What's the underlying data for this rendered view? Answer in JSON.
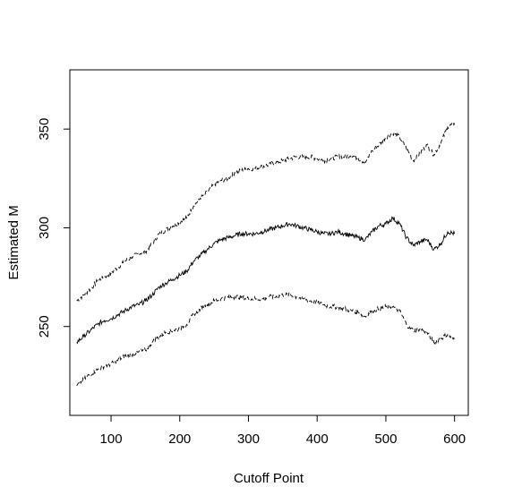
{
  "chart_data": {
    "type": "line",
    "xlabel": "Cutoff Point",
    "ylabel": "Estimated M",
    "xlim": [
      40,
      620
    ],
    "ylim": [
      205,
      380
    ],
    "x_ticks": [
      100,
      200,
      300,
      400,
      500,
      600
    ],
    "y_ticks": [
      250,
      300,
      350
    ],
    "grid": false,
    "legend": "none",
    "colors": {
      "line": "#000000",
      "axis": "#000000",
      "background": "#ffffff"
    },
    "series": [
      {
        "style": "dashed",
        "x": [
          50,
          60,
          70,
          80,
          90,
          100,
          110,
          120,
          130,
          140,
          150,
          160,
          170,
          180,
          190,
          200,
          210,
          220,
          230,
          240,
          250,
          260,
          270,
          280,
          290,
          300,
          310,
          320,
          330,
          340,
          350,
          360,
          370,
          380,
          390,
          400,
          410,
          420,
          430,
          440,
          450,
          460,
          470,
          480,
          490,
          500,
          510,
          520,
          530,
          540,
          550,
          560,
          570,
          580,
          590,
          600
        ],
        "y": [
          263,
          266,
          269,
          273,
          275,
          277,
          280,
          283,
          285,
          287,
          288,
          292,
          297,
          299,
          301,
          303,
          305,
          311,
          315,
          318,
          322,
          324,
          325,
          328,
          329,
          330,
          330,
          331,
          332,
          333,
          334,
          335,
          336,
          336,
          336,
          335,
          334,
          335,
          336,
          336,
          337,
          335,
          333,
          339,
          342,
          346,
          348,
          346,
          340,
          334,
          338,
          342,
          337,
          343,
          351,
          353
        ]
      },
      {
        "style": "solid",
        "x": [
          50,
          60,
          70,
          80,
          90,
          100,
          110,
          120,
          130,
          140,
          150,
          160,
          170,
          180,
          190,
          200,
          210,
          220,
          230,
          240,
          250,
          260,
          270,
          280,
          290,
          300,
          310,
          320,
          330,
          340,
          350,
          360,
          370,
          380,
          390,
          400,
          410,
          420,
          430,
          440,
          450,
          460,
          470,
          480,
          490,
          500,
          510,
          520,
          530,
          540,
          550,
          560,
          570,
          580,
          590,
          600
        ],
        "y": [
          242,
          245,
          248,
          251,
          253,
          254,
          256,
          258,
          260,
          261,
          263,
          266,
          270,
          272,
          274,
          276,
          278,
          283,
          286,
          289,
          292,
          294,
          295,
          296,
          297,
          297,
          297,
          298,
          299,
          300,
          301,
          302,
          301,
          300,
          299,
          298,
          297,
          297,
          298,
          297,
          296,
          295,
          294,
          298,
          301,
          302,
          305,
          302,
          295,
          291,
          293,
          294,
          289,
          292,
          298,
          297
        ]
      },
      {
        "style": "dashed",
        "x": [
          50,
          60,
          70,
          80,
          90,
          100,
          110,
          120,
          130,
          140,
          150,
          160,
          170,
          180,
          190,
          200,
          210,
          220,
          230,
          240,
          250,
          260,
          270,
          280,
          290,
          300,
          310,
          320,
          330,
          340,
          350,
          360,
          370,
          380,
          390,
          400,
          410,
          420,
          430,
          440,
          450,
          460,
          470,
          480,
          490,
          500,
          510,
          520,
          530,
          540,
          550,
          560,
          570,
          580,
          590,
          600
        ],
        "y": [
          220,
          223,
          226,
          228,
          230,
          231,
          233,
          235,
          236,
          237,
          238,
          242,
          245,
          247,
          248,
          249,
          251,
          256,
          259,
          261,
          263,
          264,
          265,
          265,
          265,
          264,
          264,
          264,
          265,
          265,
          266,
          266,
          265,
          264,
          263,
          262,
          261,
          260,
          260,
          259,
          258,
          257,
          255,
          258,
          259,
          260,
          260,
          258,
          251,
          248,
          249,
          247,
          242,
          244,
          246,
          243
        ]
      }
    ]
  }
}
